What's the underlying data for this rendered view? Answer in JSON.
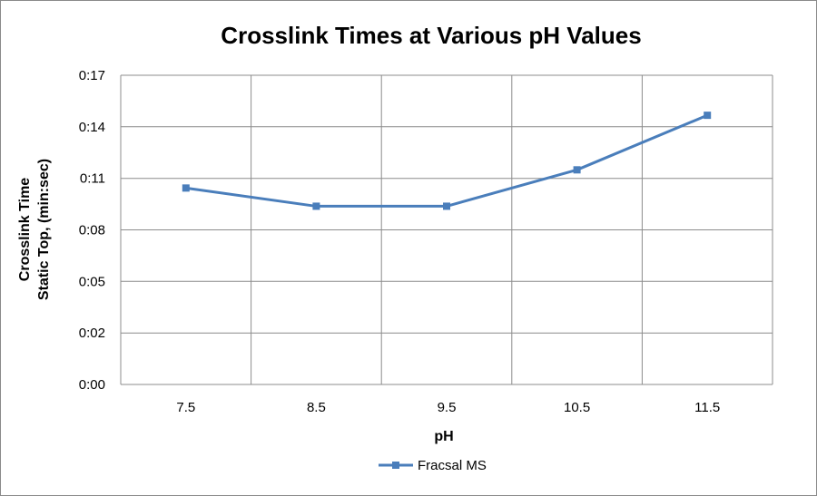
{
  "chart_data": {
    "type": "line",
    "title": "Crosslink Times at Various pH Values",
    "xlabel": "pH",
    "ylabel_lines": [
      "Crosslink Time",
      "Static Top, (min:sec)"
    ],
    "categories": [
      "7.5",
      "8.5",
      "9.5",
      "10.5",
      "11.5"
    ],
    "y_ticks": [
      "0:00",
      "0:02",
      "0:05",
      "0:08",
      "0:11",
      "0:14",
      "0:17"
    ],
    "y_tick_seconds": [
      0,
      2.83,
      5.67,
      8.5,
      11.33,
      14.17,
      17
    ],
    "ylim_seconds": [
      0,
      17
    ],
    "grid": true,
    "legend_position": "bottom",
    "series": [
      {
        "name": "Fracsal MS",
        "color": "#4a7ebb",
        "marker": "square",
        "values_seconds": [
          10.8,
          9.8,
          9.8,
          11.8,
          14.8
        ]
      }
    ]
  }
}
